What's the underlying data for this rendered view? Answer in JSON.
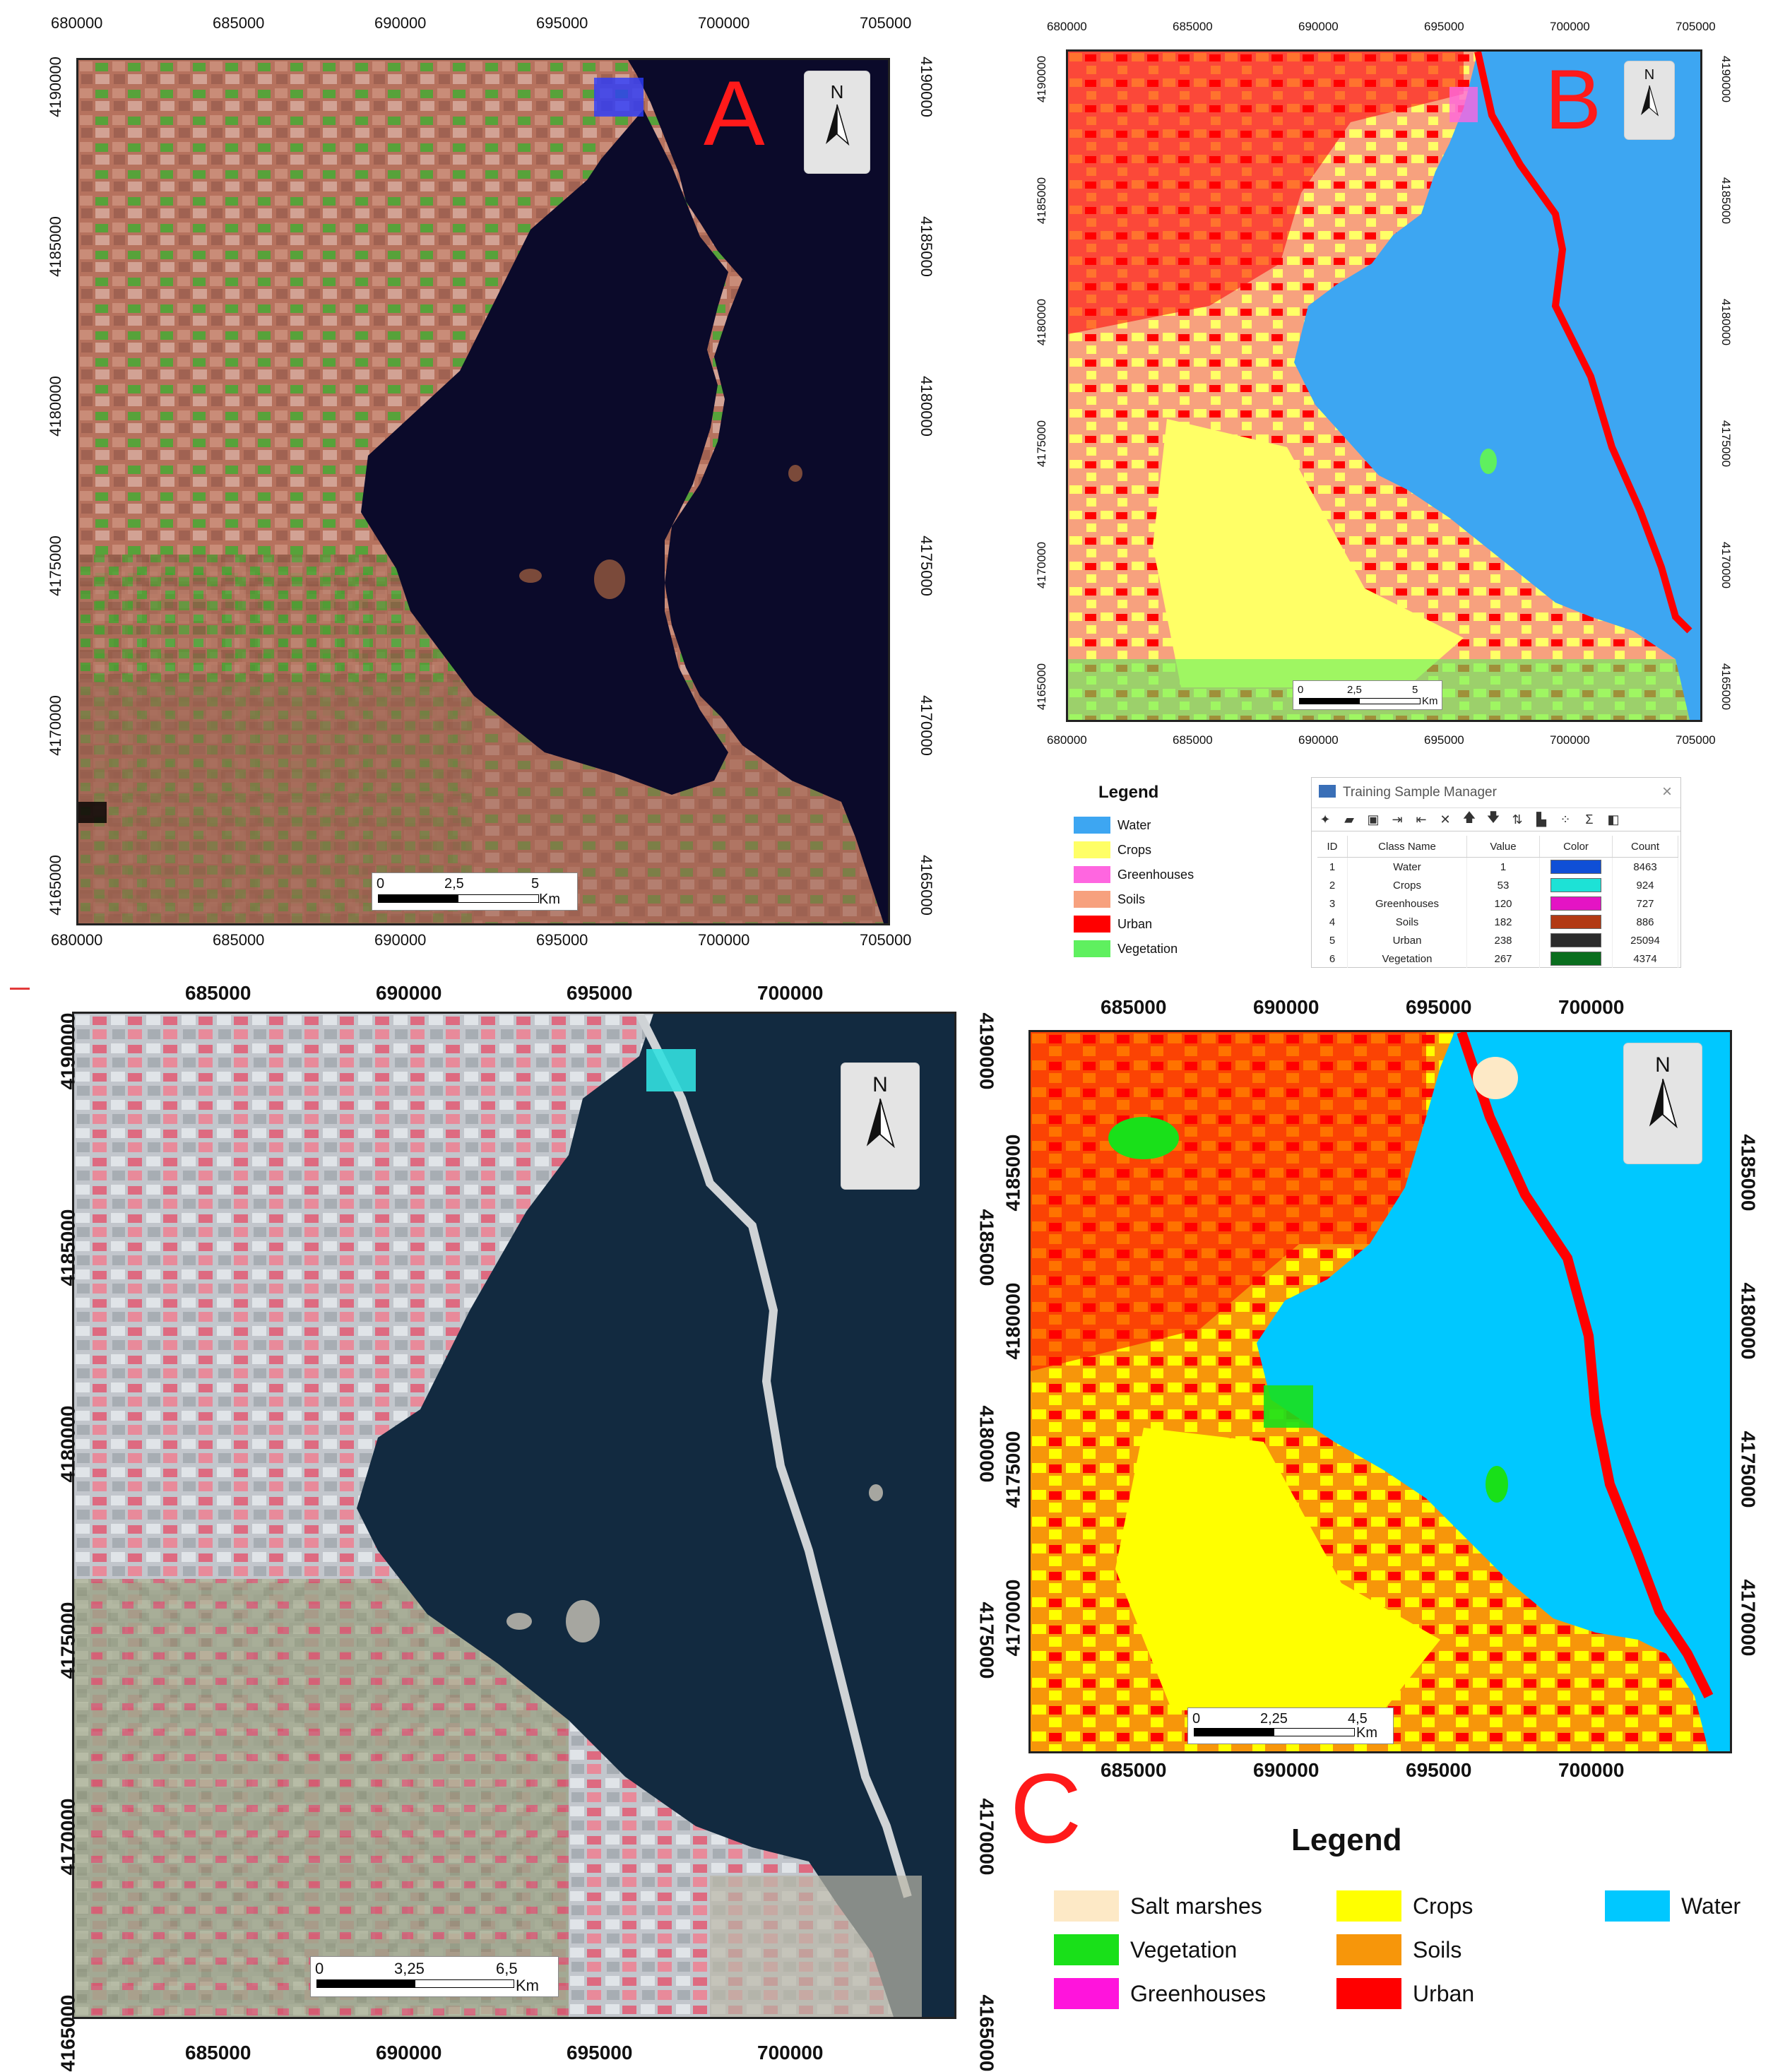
{
  "panel_a": {
    "letter": "A",
    "x_ticks": [
      "680000",
      "685000",
      "690000",
      "695000",
      "700000",
      "705000"
    ],
    "y_ticks": [
      "4190000",
      "4185000",
      "4180000",
      "4175000",
      "4170000",
      "4165000"
    ],
    "north": "N",
    "scale": {
      "labels": [
        "0",
        "2,5",
        "5"
      ],
      "unit": "Km"
    }
  },
  "panel_b": {
    "letter": "B",
    "x_ticks": [
      "680000",
      "685000",
      "690000",
      "695000",
      "700000",
      "705000"
    ],
    "y_ticks": [
      "4190000",
      "4185000",
      "4180000",
      "4175000",
      "4170000",
      "4165000"
    ],
    "north": "N",
    "scale": {
      "labels": [
        "0",
        "2,5",
        "5"
      ],
      "unit": "Km"
    },
    "legend": {
      "title": "Legend",
      "items": [
        {
          "label": "Water",
          "color": "#3da6f2"
        },
        {
          "label": "Crops",
          "color": "#ffff66"
        },
        {
          "label": "Greenhouses",
          "color": "#ff66e0"
        },
        {
          "label": "Soils",
          "color": "#f7a17e"
        },
        {
          "label": "Urban",
          "color": "#ff0000"
        },
        {
          "label": "Vegetation",
          "color": "#5ff05f"
        }
      ]
    },
    "training_sample_manager": {
      "title": "Training Sample Manager",
      "close": "×",
      "headers": [
        "ID",
        "Class Name",
        "Value",
        "Color",
        "Count"
      ],
      "rows": [
        {
          "id": "1",
          "name": "Water",
          "value": "1",
          "color": "#0f4fd6",
          "count": "8463"
        },
        {
          "id": "2",
          "name": "Crops",
          "value": "53",
          "color": "#1de2d6",
          "count": "924"
        },
        {
          "id": "3",
          "name": "Greenhouses",
          "value": "120",
          "color": "#e414c4",
          "count": "727"
        },
        {
          "id": "4",
          "name": "Soils",
          "value": "182",
          "color": "#b23a14",
          "count": "886"
        },
        {
          "id": "5",
          "name": "Urban",
          "value": "238",
          "color": "#2c2c2c",
          "count": "25094"
        },
        {
          "id": "6",
          "name": "Vegetation",
          "value": "267",
          "color": "#0a6e1e",
          "count": "4374"
        }
      ]
    }
  },
  "panel_c_left": {
    "x_ticks": [
      "685000",
      "690000",
      "695000",
      "700000"
    ],
    "y_ticks": [
      "4190000",
      "4185000",
      "4180000",
      "4175000",
      "4170000",
      "4165000"
    ],
    "north": "N",
    "scale": {
      "labels": [
        "0",
        "3,25",
        "6,5"
      ],
      "unit": "Km"
    }
  },
  "panel_c_right": {
    "letter": "C",
    "x_ticks": [
      "685000",
      "690000",
      "695000",
      "700000"
    ],
    "y_ticks": [
      "4185000",
      "4180000",
      "4175000",
      "4170000"
    ],
    "north": "N",
    "scale": {
      "labels": [
        "0",
        "2,25",
        "4,5"
      ],
      "unit": "Km"
    },
    "legend": {
      "title": "Legend",
      "items": [
        {
          "label": "Salt marshes",
          "color": "#fde9c6"
        },
        {
          "label": "Vegetation",
          "color": "#19e019"
        },
        {
          "label": "Greenhouses",
          "color": "#ff14dc"
        },
        {
          "label": "Crops",
          "color": "#ffff00"
        },
        {
          "label": "Soils",
          "color": "#f7960a"
        },
        {
          "label": "Urban",
          "color": "#ff0000"
        },
        {
          "label": "Water",
          "color": "#00c8ff"
        }
      ]
    }
  }
}
